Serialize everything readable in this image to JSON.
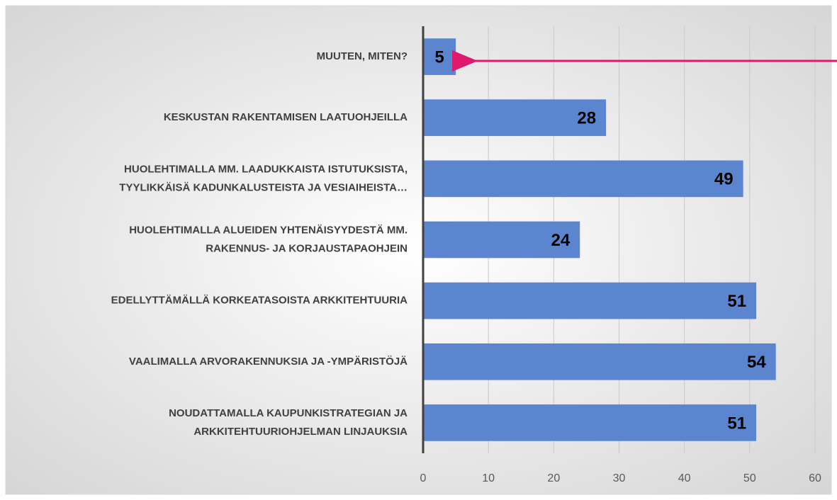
{
  "chart_data": {
    "type": "bar",
    "orientation": "horizontal",
    "categories": [
      [
        "MUUTEN, MITEN?"
      ],
      [
        "KESKUSTAN RAKENTAMISEN LAATUOHJEILLA"
      ],
      [
        "HUOLEHTIMALLA MM. LAADUKKAISTA ISTUTUKSISTA,",
        "TYYLIKKÄISÄ KADUNKALUSTEISTA JA VESIAIHEISTA…"
      ],
      [
        "HUOLEHTIMALLA ALUEIDEN YHTENÄISYYDESTÄ MM.",
        "RAKENNUS- JA KORJAUSTAPAOHJEIN"
      ],
      [
        "EDELLYTTÄMÄLLÄ KORKEATASOISTA ARKKITEHTUURIA"
      ],
      [
        "VAALIMALLA ARVORAKENNUKSIA JA -YMPÄRISTÖJÄ"
      ],
      [
        "NOUDATTAMALLA KAUPUNKISTRATEGIAN JA",
        "ARKKITEHTUURIOHJELMAN LINJAUKSIA"
      ]
    ],
    "values": [
      5,
      28,
      49,
      24,
      51,
      54,
      51
    ],
    "color": "#5b86cf",
    "xlim": [
      0,
      60
    ],
    "xticks": [
      0,
      10,
      20,
      30,
      40,
      50,
      60
    ],
    "grid": true
  }
}
